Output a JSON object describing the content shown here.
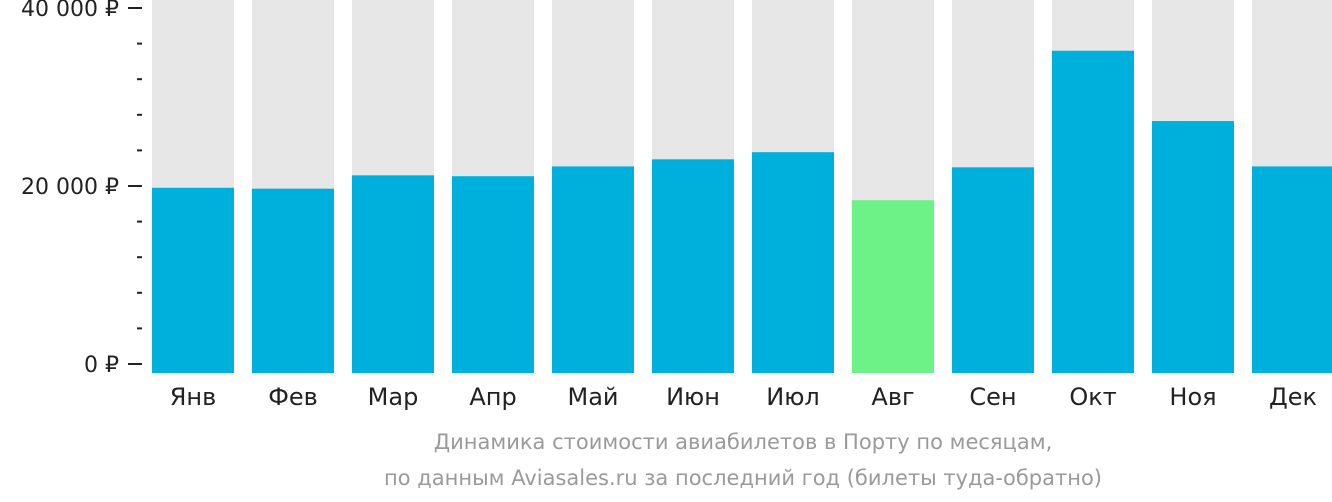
{
  "colors": {
    "bar": "#00b0dc",
    "highlight": "#6cf287",
    "track": "#e7e7e7",
    "axis": "#222222"
  },
  "caption": {
    "line1": "Динамика стоимости авиабилетов в Порту по месяцам,",
    "line2": "по данным Aviasales.ru за последний год (билеты туда-обратно)"
  },
  "chart_data": {
    "type": "bar",
    "categories": [
      "Янв",
      "Фев",
      "Мар",
      "Апр",
      "Май",
      "Июн",
      "Июл",
      "Авг",
      "Сен",
      "Окт",
      "Ноя",
      "Дек"
    ],
    "values": [
      19800,
      19700,
      21200,
      21100,
      22200,
      23000,
      23800,
      18400,
      22100,
      35200,
      27300,
      22200
    ],
    "highlight_index": 7,
    "ylim": [
      0,
      40000
    ],
    "y_ticks": [
      {
        "value": 0,
        "label": "0 ₽"
      },
      {
        "value": 20000,
        "label": "20 000 ₽"
      },
      {
        "value": 40000,
        "label": "40 000 ₽"
      }
    ],
    "minor_tick_step": 4000,
    "grid": false,
    "legend": "none"
  }
}
